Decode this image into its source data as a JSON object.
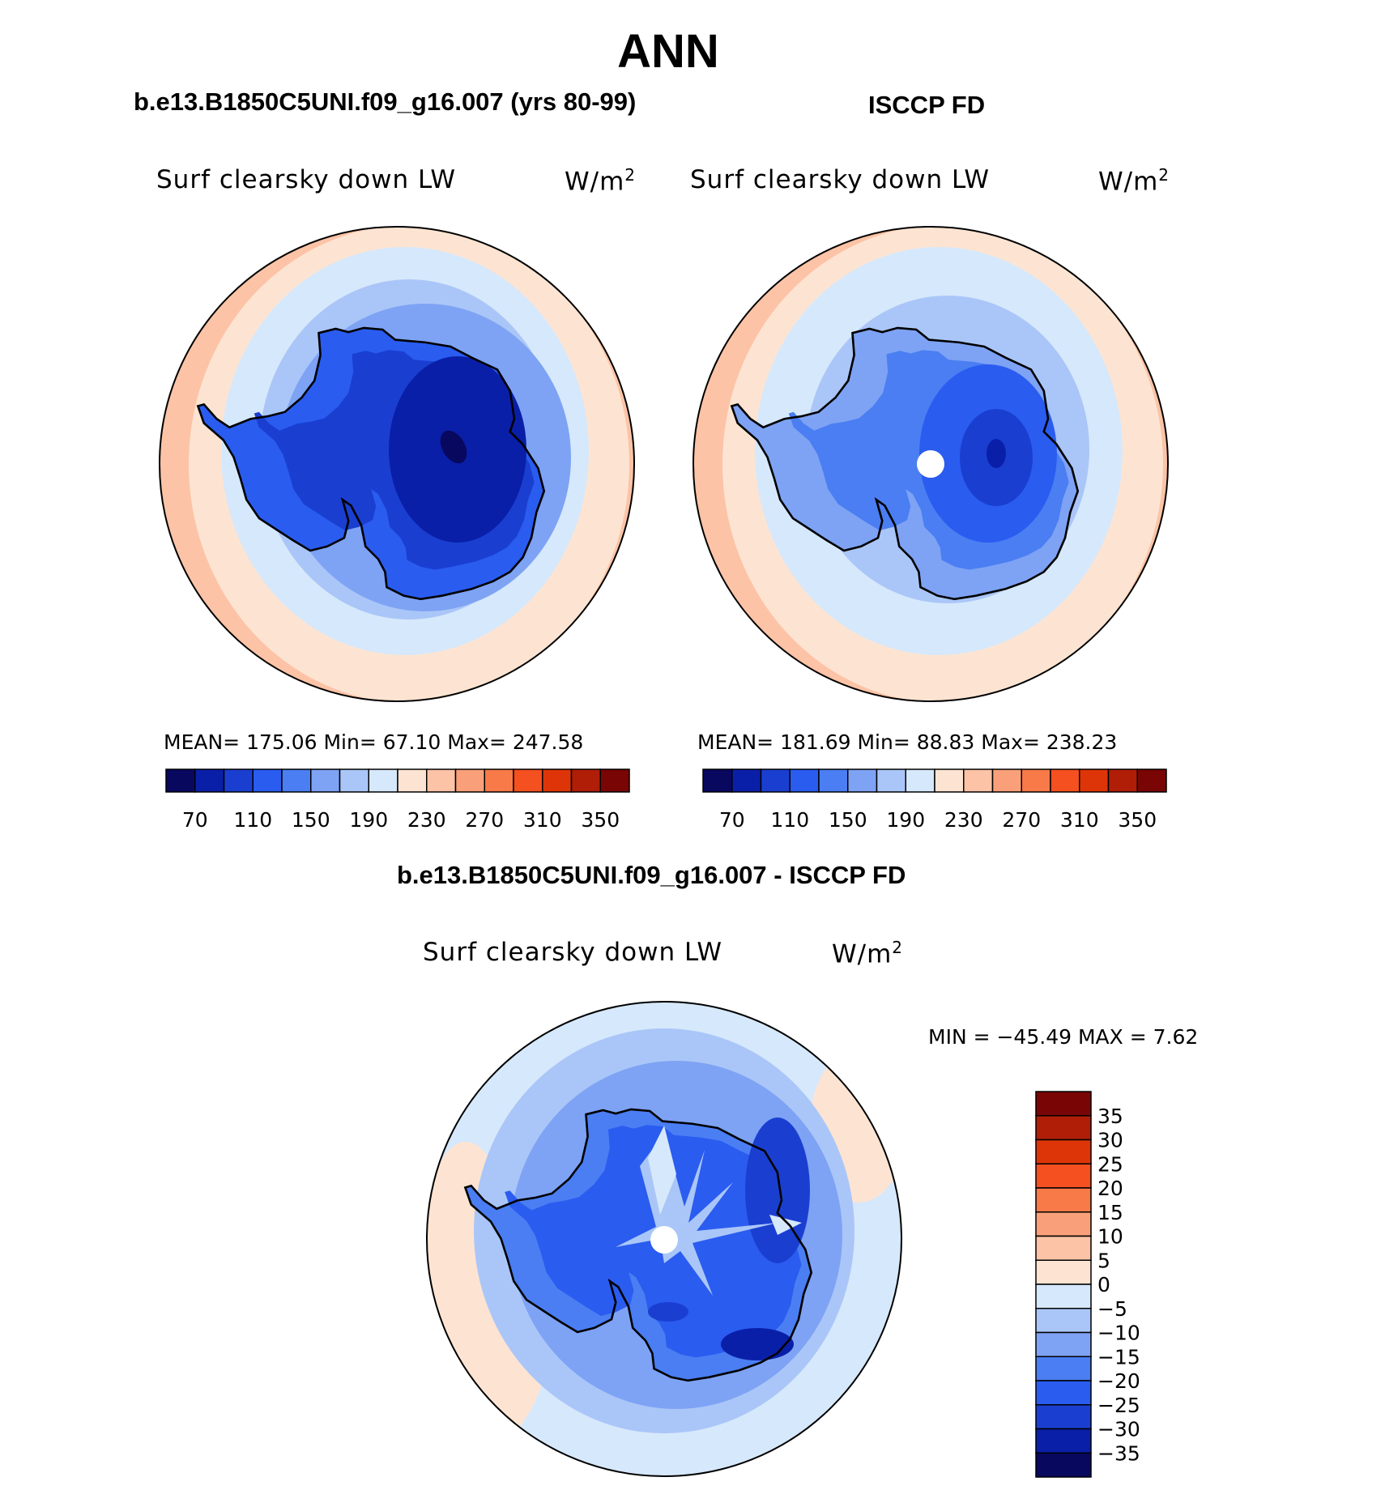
{
  "title": "ANN",
  "panels": {
    "model": {
      "title": "b.e13.B1850C5UNI.f09_g16.007 (yrs 80-99)",
      "variable": "Surf clearsky down LW",
      "units_base": "W/m",
      "units_exp": "2",
      "stats": "MEAN= 175.06   Min=   67.10   Max= 247.58"
    },
    "obs": {
      "title": "ISCCP FD",
      "variable": "Surf clearsky down LW",
      "units_base": "W/m",
      "units_exp": "2",
      "stats": "MEAN= 181.69   Min=   88.83   Max= 238.23"
    },
    "diff": {
      "title": "b.e13.B1850C5UNI.f09_g16.007 - ISCCP FD",
      "variable": "Surf clearsky down LW",
      "units_base": "W/m",
      "units_exp": "2",
      "stats": "MIN =  −45.49  MAX =     7.62"
    }
  },
  "chart_data": [
    {
      "type": "heatmap",
      "projection": "south polar stereographic",
      "title": "b.e13.B1850C5UNI.f09_g16.007 (yrs 80-99)",
      "variable": "Surf clearsky down LW",
      "units": "W/m2",
      "mean": 175.06,
      "min": 67.1,
      "max": 247.58,
      "colorbar_levels": [
        70,
        90,
        110,
        130,
        150,
        170,
        190,
        210,
        230,
        250,
        270,
        290,
        310,
        330,
        350
      ],
      "colorbar_tick_labels": [
        "70",
        "110",
        "150",
        "190",
        "230",
        "270",
        "310",
        "350"
      ],
      "colorbar_colors": [
        "#08085f",
        "#0a1fa8",
        "#1a3fd0",
        "#2a5cf0",
        "#4a7ef2",
        "#7ea3f4",
        "#aac6f8",
        "#d6e8fb",
        "#fde4d2",
        "#fcc3a6",
        "#f9a07a",
        "#f77a48",
        "#f5501f",
        "#de3508",
        "#b01e08",
        "#7a0505"
      ]
    },
    {
      "type": "heatmap",
      "projection": "south polar stereographic",
      "title": "ISCCP FD",
      "variable": "Surf clearsky down LW",
      "units": "W/m2",
      "mean": 181.69,
      "min": 88.83,
      "max": 238.23,
      "colorbar_levels": [
        70,
        90,
        110,
        130,
        150,
        170,
        190,
        210,
        230,
        250,
        270,
        290,
        310,
        330,
        350
      ],
      "colorbar_tick_labels": [
        "70",
        "110",
        "150",
        "190",
        "230",
        "270",
        "310",
        "350"
      ],
      "colorbar_colors": [
        "#08085f",
        "#0a1fa8",
        "#1a3fd0",
        "#2a5cf0",
        "#4a7ef2",
        "#7ea3f4",
        "#aac6f8",
        "#d6e8fb",
        "#fde4d2",
        "#fcc3a6",
        "#f9a07a",
        "#f77a48",
        "#f5501f",
        "#de3508",
        "#b01e08",
        "#7a0505"
      ]
    },
    {
      "type": "heatmap",
      "projection": "south polar stereographic",
      "title": "b.e13.B1850C5UNI.f09_g16.007 - ISCCP FD",
      "variable": "Surf clearsky down LW",
      "units": "W/m2",
      "min": -45.49,
      "max": 7.62,
      "colorbar_levels": [
        35,
        30,
        25,
        20,
        15,
        10,
        5,
        0,
        -5,
        -10,
        -15,
        -20,
        -25,
        -30,
        -35
      ],
      "colorbar_tick_labels": [
        "35",
        "30",
        "25",
        "20",
        "15",
        "10",
        "5",
        "0",
        "−5",
        "−10",
        "−15",
        "−20",
        "−25",
        "−30",
        "−35"
      ],
      "colorbar_colors": [
        "#7a0505",
        "#b01e08",
        "#de3508",
        "#f5501f",
        "#f77a48",
        "#f9a07a",
        "#fcc3a6",
        "#fde4d2",
        "#d6e8fb",
        "#aac6f8",
        "#7ea3f4",
        "#4a7ef2",
        "#2a5cf0",
        "#1a3fd0",
        "#0a1fa8",
        "#08085f"
      ]
    }
  ]
}
